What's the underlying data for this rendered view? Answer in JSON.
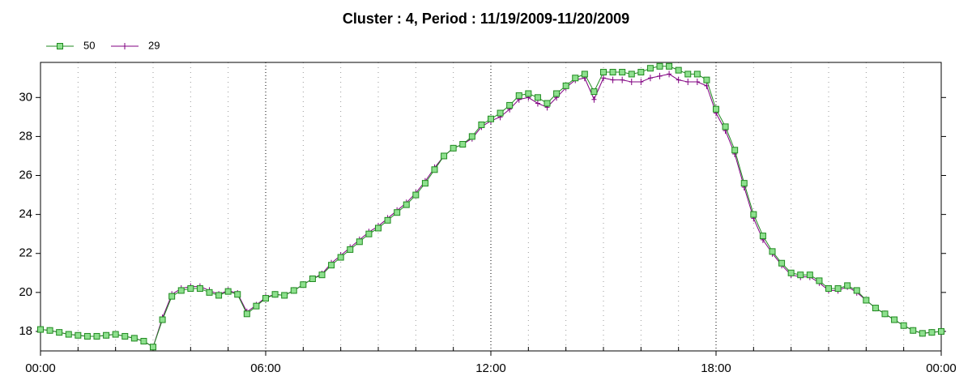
{
  "chart_data": {
    "type": "line",
    "title": "Cluster : 4, Period : 11/19/2009-11/20/2009",
    "x": [
      0,
      0.25,
      0.5,
      0.75,
      1,
      1.25,
      1.5,
      1.75,
      2,
      2.25,
      2.5,
      2.75,
      3,
      3.25,
      3.5,
      3.75,
      4,
      4.25,
      4.5,
      4.75,
      5,
      5.25,
      5.5,
      5.75,
      6,
      6.25,
      6.5,
      6.75,
      7,
      7.25,
      7.5,
      7.75,
      8,
      8.25,
      8.5,
      8.75,
      9,
      9.25,
      9.5,
      9.75,
      10,
      10.25,
      10.5,
      10.75,
      11,
      11.25,
      11.5,
      11.75,
      12,
      12.25,
      12.5,
      12.75,
      13,
      13.25,
      13.5,
      13.75,
      14,
      14.25,
      14.5,
      14.75,
      15,
      15.25,
      15.5,
      15.75,
      16,
      16.25,
      16.5,
      16.75,
      17,
      17.25,
      17.5,
      17.75,
      18,
      18.25,
      18.5,
      18.75,
      19,
      19.25,
      19.5,
      19.75,
      20,
      20.25,
      20.5,
      20.75,
      21,
      21.25,
      21.5,
      21.75,
      22,
      22.25,
      22.5,
      22.75,
      23,
      23.25,
      23.5,
      23.75,
      24
    ],
    "series": [
      {
        "name": "50",
        "color": "#1f8a1f",
        "marker": "square",
        "marker_fill": "#8ee08e",
        "values": [
          18.1,
          18.05,
          17.95,
          17.85,
          17.8,
          17.75,
          17.75,
          17.8,
          17.85,
          17.75,
          17.65,
          17.5,
          17.2,
          18.6,
          19.8,
          20.1,
          20.2,
          20.2,
          20.0,
          19.85,
          20.05,
          19.9,
          18.9,
          19.3,
          19.7,
          19.9,
          19.85,
          20.1,
          20.4,
          20.7,
          20.9,
          21.4,
          21.8,
          22.2,
          22.6,
          23.0,
          23.3,
          23.7,
          24.1,
          24.5,
          25.0,
          25.6,
          26.3,
          27.0,
          27.4,
          27.6,
          28.0,
          28.6,
          28.9,
          29.2,
          29.6,
          30.1,
          30.2,
          30.0,
          29.7,
          30.2,
          30.6,
          31.0,
          31.2,
          30.3,
          31.3,
          31.3,
          31.3,
          31.2,
          31.3,
          31.5,
          31.6,
          31.6,
          31.4,
          31.2,
          31.2,
          30.9,
          29.4,
          28.5,
          27.3,
          25.6,
          24.0,
          22.9,
          22.1,
          21.5,
          21.0,
          20.9,
          20.9,
          20.6,
          20.2,
          20.2,
          20.35,
          20.1,
          19.6,
          19.2,
          18.9,
          18.6,
          18.3,
          18.05,
          17.9,
          17.95,
          18.0
        ]
      },
      {
        "name": "29",
        "color": "#800080",
        "marker": "plus",
        "values": [
          18.1,
          18.05,
          17.95,
          17.85,
          17.8,
          17.75,
          17.75,
          17.8,
          17.85,
          17.75,
          17.65,
          17.5,
          17.2,
          18.7,
          19.9,
          20.2,
          20.3,
          20.3,
          20.1,
          19.9,
          20.1,
          19.95,
          19.0,
          19.35,
          19.75,
          19.9,
          19.85,
          20.1,
          20.4,
          20.7,
          20.95,
          21.5,
          21.9,
          22.3,
          22.7,
          23.1,
          23.4,
          23.8,
          24.2,
          24.6,
          25.1,
          25.7,
          26.4,
          27.0,
          27.4,
          27.6,
          27.9,
          28.5,
          28.8,
          29.0,
          29.4,
          29.9,
          30.0,
          29.7,
          29.5,
          30.0,
          30.5,
          30.9,
          31.0,
          29.9,
          31.0,
          30.9,
          30.9,
          30.8,
          30.8,
          31.0,
          31.1,
          31.2,
          30.9,
          30.8,
          30.8,
          30.6,
          29.2,
          28.3,
          27.1,
          25.4,
          23.8,
          22.7,
          22.0,
          21.4,
          20.9,
          20.8,
          20.8,
          20.5,
          20.1,
          20.1,
          20.3,
          20.0,
          19.6,
          19.2,
          18.9,
          18.6,
          18.3,
          18.05,
          17.9,
          17.95,
          18.0
        ]
      }
    ],
    "xlim": [
      0,
      24
    ],
    "xticks": [
      {
        "value": 0,
        "label": "00:00"
      },
      {
        "value": 6,
        "label": "06:00"
      },
      {
        "value": 12,
        "label": "12:00"
      },
      {
        "value": 18,
        "label": "18:00"
      },
      {
        "value": 24,
        "label": "00:00"
      }
    ],
    "xminorticks": [
      1,
      2,
      3,
      4,
      5,
      7,
      8,
      9,
      10,
      11,
      13,
      14,
      15,
      16,
      17,
      19,
      20,
      21,
      22,
      23
    ],
    "ylim": [
      17,
      31.8
    ],
    "yticks": [
      18,
      20,
      22,
      24,
      26,
      28,
      30
    ],
    "grid": true,
    "legend": "top-left"
  }
}
